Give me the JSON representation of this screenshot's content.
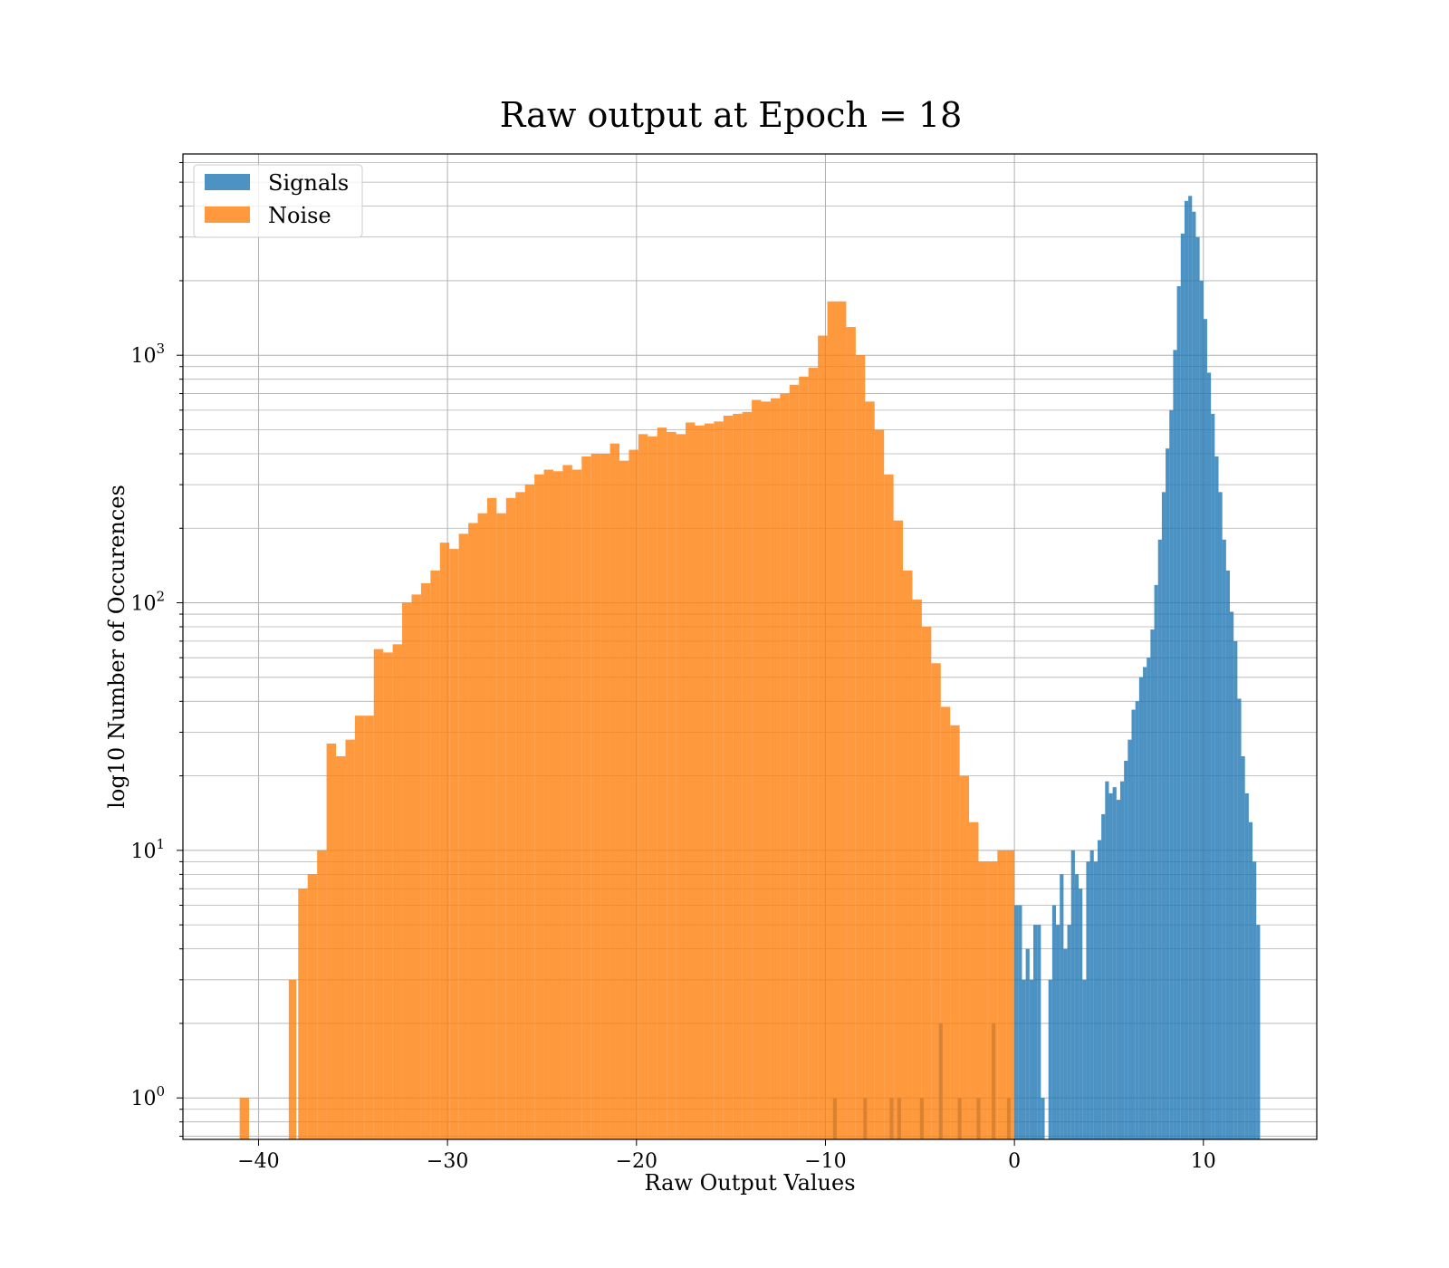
{
  "chart_data": {
    "type": "bar",
    "title": "Raw output at Epoch = 18",
    "xlabel": "Raw Output Values",
    "ylabel": "log10 Number of Occurences",
    "xlim": [
      -44,
      16
    ],
    "ylim": [
      0.68,
      6500
    ],
    "yscale": "log",
    "grid": true,
    "legend_position": "top-left",
    "x_ticks": [
      -40,
      -30,
      -20,
      -10,
      0,
      10
    ],
    "x_tick_labels": [
      "−40",
      "−30",
      "−20",
      "−10",
      "0",
      "10"
    ],
    "y_ticks": [
      1,
      10,
      100,
      1000
    ],
    "y_tick_labels": [
      {
        "base": "10",
        "exp": "0"
      },
      {
        "base": "10",
        "exp": "1"
      },
      {
        "base": "10",
        "exp": "2"
      },
      {
        "base": "10",
        "exp": "3"
      }
    ],
    "series": [
      {
        "name": "Signals",
        "color": "#1f77b4",
        "bins": [
          [
            -9.6,
            -9.4,
            1
          ],
          [
            -8.0,
            -7.8,
            1
          ],
          [
            -6.6,
            -6.4,
            1
          ],
          [
            -6.2,
            -6.0,
            1
          ],
          [
            -5.0,
            -4.8,
            1
          ],
          [
            -4.0,
            -3.8,
            2
          ],
          [
            -3.0,
            -2.8,
            1
          ],
          [
            -2.0,
            -1.8,
            1
          ],
          [
            -1.2,
            -1.0,
            2
          ],
          [
            -0.4,
            -0.2,
            1
          ],
          [
            0.0,
            0.2,
            6
          ],
          [
            0.2,
            0.4,
            6
          ],
          [
            0.4,
            0.6,
            3
          ],
          [
            0.6,
            0.8,
            4
          ],
          [
            0.8,
            1.0,
            3
          ],
          [
            1.0,
            1.2,
            5
          ],
          [
            1.2,
            1.4,
            5
          ],
          [
            1.4,
            1.6,
            1
          ],
          [
            1.8,
            2.0,
            3
          ],
          [
            2.0,
            2.2,
            6
          ],
          [
            2.2,
            2.4,
            5
          ],
          [
            2.4,
            2.6,
            8
          ],
          [
            2.6,
            2.8,
            4
          ],
          [
            2.8,
            3.0,
            5
          ],
          [
            3.0,
            3.2,
            10
          ],
          [
            3.2,
            3.4,
            8
          ],
          [
            3.4,
            3.6,
            7
          ],
          [
            3.6,
            3.8,
            3
          ],
          [
            3.8,
            4.0,
            9
          ],
          [
            4.0,
            4.2,
            10
          ],
          [
            4.2,
            4.4,
            9
          ],
          [
            4.4,
            4.6,
            11
          ],
          [
            4.6,
            4.8,
            14
          ],
          [
            4.8,
            5.0,
            19
          ],
          [
            5.0,
            5.2,
            17
          ],
          [
            5.2,
            5.4,
            18
          ],
          [
            5.4,
            5.6,
            16
          ],
          [
            5.6,
            5.8,
            19
          ],
          [
            5.8,
            6.0,
            23
          ],
          [
            6.0,
            6.2,
            28
          ],
          [
            6.2,
            6.4,
            37
          ],
          [
            6.4,
            6.6,
            40
          ],
          [
            6.6,
            6.8,
            50
          ],
          [
            6.8,
            7.0,
            55
          ],
          [
            7.0,
            7.2,
            60
          ],
          [
            7.2,
            7.4,
            78
          ],
          [
            7.4,
            7.6,
            118
          ],
          [
            7.6,
            7.8,
            180
          ],
          [
            7.8,
            8.0,
            280
          ],
          [
            8.0,
            8.2,
            420
          ],
          [
            8.2,
            8.4,
            600
          ],
          [
            8.4,
            8.6,
            1050
          ],
          [
            8.6,
            8.8,
            1900
          ],
          [
            8.8,
            9.0,
            3100
          ],
          [
            9.0,
            9.2,
            4200
          ],
          [
            9.2,
            9.4,
            4400
          ],
          [
            9.4,
            9.6,
            3800
          ],
          [
            9.6,
            9.8,
            3000
          ],
          [
            9.8,
            10.0,
            2000
          ],
          [
            10.0,
            10.2,
            1400
          ],
          [
            10.2,
            10.4,
            850
          ],
          [
            10.4,
            10.6,
            580
          ],
          [
            10.6,
            10.8,
            390
          ],
          [
            10.8,
            11.0,
            280
          ],
          [
            11.0,
            11.2,
            180
          ],
          [
            11.2,
            11.4,
            135
          ],
          [
            11.4,
            11.6,
            92
          ],
          [
            11.6,
            11.8,
            70
          ],
          [
            11.8,
            12.0,
            41
          ],
          [
            12.0,
            12.2,
            24
          ],
          [
            12.2,
            12.4,
            17
          ],
          [
            12.4,
            12.6,
            13
          ],
          [
            12.6,
            12.8,
            9
          ],
          [
            12.8,
            13.0,
            5
          ]
        ]
      },
      {
        "name": "Noise",
        "color": "#ff7f0e",
        "bins": [
          [
            -41.0,
            -40.5,
            1
          ],
          [
            -38.4,
            -38.0,
            3
          ],
          [
            -37.9,
            -37.4,
            7
          ],
          [
            -37.4,
            -36.9,
            8
          ],
          [
            -36.9,
            -36.4,
            10
          ],
          [
            -36.4,
            -35.9,
            27
          ],
          [
            -35.9,
            -35.4,
            24
          ],
          [
            -35.4,
            -34.9,
            28
          ],
          [
            -34.9,
            -34.4,
            35
          ],
          [
            -34.4,
            -33.9,
            35
          ],
          [
            -33.9,
            -33.4,
            65
          ],
          [
            -33.4,
            -32.9,
            63
          ],
          [
            -32.9,
            -32.4,
            68
          ],
          [
            -32.4,
            -31.9,
            100
          ],
          [
            -31.9,
            -31.4,
            108
          ],
          [
            -31.4,
            -30.9,
            120
          ],
          [
            -30.9,
            -30.4,
            135
          ],
          [
            -30.4,
            -29.9,
            175
          ],
          [
            -29.9,
            -29.4,
            165
          ],
          [
            -29.4,
            -28.9,
            190
          ],
          [
            -28.9,
            -28.4,
            210
          ],
          [
            -28.4,
            -27.9,
            230
          ],
          [
            -27.9,
            -27.4,
            265
          ],
          [
            -27.4,
            -26.9,
            230
          ],
          [
            -26.9,
            -26.4,
            265
          ],
          [
            -26.4,
            -25.9,
            280
          ],
          [
            -25.9,
            -25.4,
            300
          ],
          [
            -25.4,
            -24.9,
            330
          ],
          [
            -24.9,
            -24.4,
            345
          ],
          [
            -24.4,
            -23.9,
            340
          ],
          [
            -23.9,
            -23.4,
            360
          ],
          [
            -23.4,
            -22.9,
            345
          ],
          [
            -22.9,
            -22.4,
            390
          ],
          [
            -22.4,
            -21.9,
            400
          ],
          [
            -21.9,
            -21.4,
            400
          ],
          [
            -21.4,
            -20.9,
            440
          ],
          [
            -20.9,
            -20.4,
            375
          ],
          [
            -20.4,
            -19.9,
            415
          ],
          [
            -19.9,
            -19.4,
            480
          ],
          [
            -19.4,
            -18.9,
            470
          ],
          [
            -18.9,
            -18.4,
            510
          ],
          [
            -18.4,
            -17.9,
            490
          ],
          [
            -17.9,
            -17.4,
            480
          ],
          [
            -17.4,
            -16.9,
            535
          ],
          [
            -16.9,
            -16.4,
            520
          ],
          [
            -16.4,
            -15.9,
            530
          ],
          [
            -15.9,
            -15.4,
            540
          ],
          [
            -15.4,
            -14.9,
            570
          ],
          [
            -14.9,
            -14.4,
            580
          ],
          [
            -14.4,
            -13.9,
            590
          ],
          [
            -13.9,
            -13.4,
            660
          ],
          [
            -13.4,
            -12.9,
            650
          ],
          [
            -12.9,
            -12.4,
            670
          ],
          [
            -12.4,
            -11.9,
            700
          ],
          [
            -11.9,
            -11.4,
            760
          ],
          [
            -11.4,
            -10.9,
            820
          ],
          [
            -10.9,
            -10.4,
            890
          ],
          [
            -10.4,
            -9.9,
            1200
          ],
          [
            -9.9,
            -9.4,
            1650
          ],
          [
            -9.4,
            -8.9,
            1650
          ],
          [
            -8.9,
            -8.4,
            1300
          ],
          [
            -8.4,
            -7.9,
            1000
          ],
          [
            -7.9,
            -7.4,
            650
          ],
          [
            -7.4,
            -6.9,
            500
          ],
          [
            -6.9,
            -6.4,
            330
          ],
          [
            -6.4,
            -5.9,
            215
          ],
          [
            -5.9,
            -5.4,
            135
          ],
          [
            -5.4,
            -4.9,
            103
          ],
          [
            -4.9,
            -4.4,
            80
          ],
          [
            -4.4,
            -3.9,
            57
          ],
          [
            -3.9,
            -3.4,
            38
          ],
          [
            -3.4,
            -2.9,
            32
          ],
          [
            -2.9,
            -2.4,
            20
          ],
          [
            -2.4,
            -1.9,
            13
          ],
          [
            -1.9,
            -1.4,
            9
          ],
          [
            -1.4,
            -0.9,
            9
          ],
          [
            -0.9,
            -0.4,
            10
          ],
          [
            -0.4,
            0.0,
            10
          ]
        ]
      }
    ]
  }
}
